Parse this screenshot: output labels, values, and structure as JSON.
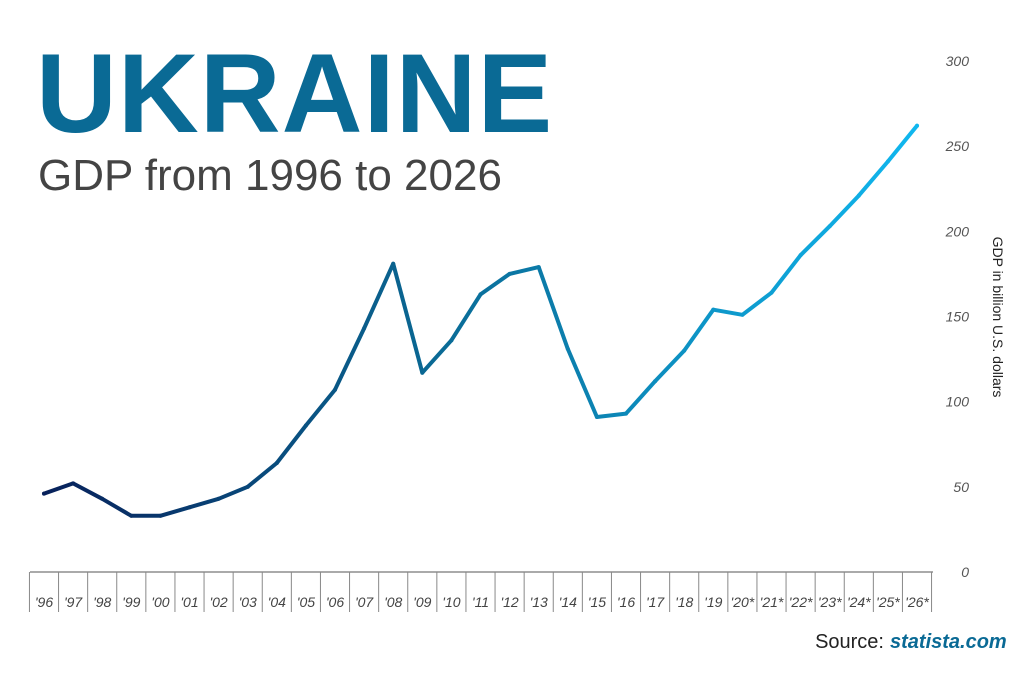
{
  "chart_data": {
    "type": "line",
    "title": "UKRAINE",
    "subtitle": "GDP from 1996 to 2026",
    "ylabel": "GDP in billion U.S. dollars",
    "xlabel": "",
    "ylim": [
      0,
      300
    ],
    "yticks": [
      "0",
      "50",
      "100",
      "150",
      "200",
      "250",
      "300"
    ],
    "grid": false,
    "categories": [
      "'96",
      "'97",
      "'98",
      "'99",
      "'00",
      "'01",
      "'02",
      "'03",
      "'04",
      "'05",
      "'06",
      "'07",
      "'08",
      "'09",
      "'10",
      "'11",
      "'12",
      "'13",
      "'14",
      "'15",
      "'16",
      "'17",
      "'18",
      "'19",
      "'20*",
      "'21*",
      "'22*",
      "'23*",
      "'24*",
      "'25*",
      "'26*"
    ],
    "values": [
      46,
      52,
      43,
      33,
      33,
      38,
      43,
      50,
      64,
      86,
      107,
      143,
      181,
      117,
      136,
      163,
      175,
      179,
      131,
      91,
      93,
      112,
      130,
      154,
      151,
      164,
      186,
      203,
      221,
      241,
      262
    ],
    "colors": {
      "start": "#07205a",
      "end": "#10b8f0"
    },
    "source_label": "Source:",
    "source_link": "statista.com"
  }
}
